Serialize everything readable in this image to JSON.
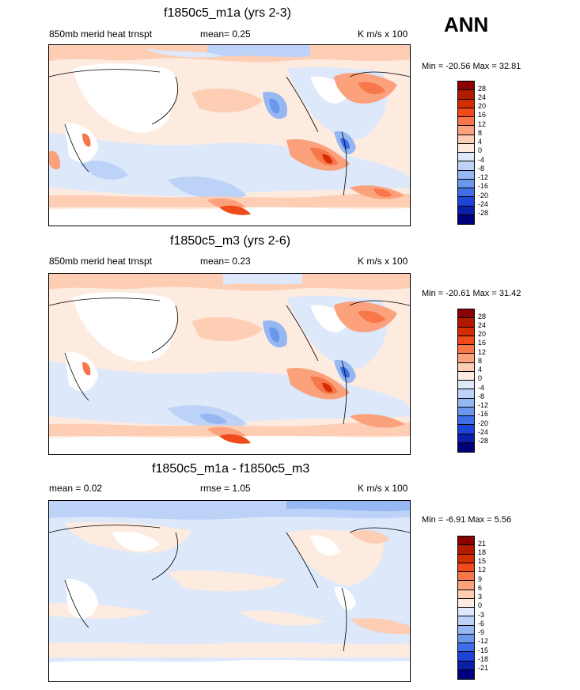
{
  "season": "ANN",
  "panels": [
    {
      "title": "f1850c5_m1a (yrs 2-3)",
      "left_label": "850mb merid heat trnspt",
      "center_label": "mean=   0.25",
      "right_label": "K m/s x 100",
      "minmax": "Min = -20.56 Max =  32.81",
      "levels": [
        "28",
        "24",
        "20",
        "16",
        "12",
        "8",
        "4",
        "0",
        "-4",
        "-8",
        "-12",
        "-16",
        "-20",
        "-24",
        "-28"
      ],
      "colors": [
        "#8b0000",
        "#b21a00",
        "#d42e00",
        "#ee4a1a",
        "#f7774a",
        "#fba27d",
        "#fdcdb4",
        "#fdebe0",
        "#dde8fb",
        "#bcd2f7",
        "#95b7f2",
        "#6b97ec",
        "#3f6ee6",
        "#1d44d6",
        "#0b1fa8",
        "#00007d"
      ]
    },
    {
      "title": "f1850c5_m3 (yrs 2-6)",
      "left_label": "850mb merid heat trnspt",
      "center_label": "mean=   0.23",
      "right_label": "K m/s x 100",
      "minmax": "Min = -20.61 Max =  31.42",
      "levels": [
        "28",
        "24",
        "20",
        "16",
        "12",
        "8",
        "4",
        "0",
        "-4",
        "-8",
        "-12",
        "-16",
        "-20",
        "-24",
        "-28"
      ],
      "colors": [
        "#8b0000",
        "#b21a00",
        "#d42e00",
        "#ee4a1a",
        "#f7774a",
        "#fba27d",
        "#fdcdb4",
        "#fdebe0",
        "#dde8fb",
        "#bcd2f7",
        "#95b7f2",
        "#6b97ec",
        "#3f6ee6",
        "#1d44d6",
        "#0b1fa8",
        "#00007d"
      ]
    },
    {
      "title": "f1850c5_m1a - f1850c5_m3",
      "left_label": "mean =   0.02",
      "center_label": "rmse =   1.05",
      "right_label": "K m/s x 100",
      "minmax": "Min =  -6.91 Max =   5.56",
      "levels": [
        "21",
        "18",
        "15",
        "12",
        "9",
        "6",
        "3",
        "0",
        "-3",
        "-6",
        "-9",
        "-12",
        "-15",
        "-18",
        "-21"
      ],
      "colors": [
        "#8b0000",
        "#b21a00",
        "#d42e00",
        "#ee4a1a",
        "#f7774a",
        "#fba27d",
        "#fdcdb4",
        "#fdebe0",
        "#dde8fb",
        "#bcd2f7",
        "#95b7f2",
        "#6b97ec",
        "#3f6ee6",
        "#1d44d6",
        "#0b1fa8",
        "#00007d"
      ]
    }
  ],
  "chart_data": [
    {
      "type": "heatmap",
      "title": "f1850c5_m1a (yrs 2-3)",
      "variable": "850mb merid heat trnspt",
      "units": "K m/s x 100",
      "mean": 0.25,
      "min": -20.56,
      "max": 32.81,
      "contour_levels": [
        -28,
        -24,
        -20,
        -16,
        -12,
        -8,
        -4,
        0,
        4,
        8,
        12,
        16,
        20,
        24,
        28
      ]
    },
    {
      "type": "heatmap",
      "title": "f1850c5_m3 (yrs 2-6)",
      "variable": "850mb merid heat trnspt",
      "units": "K m/s x 100",
      "mean": 0.23,
      "min": -20.61,
      "max": 31.42,
      "contour_levels": [
        -28,
        -24,
        -20,
        -16,
        -12,
        -8,
        -4,
        0,
        4,
        8,
        12,
        16,
        20,
        24,
        28
      ]
    },
    {
      "type": "heatmap",
      "title": "f1850c5_m1a - f1850c5_m3",
      "units": "K m/s x 100",
      "mean": 0.02,
      "rmse": 1.05,
      "min": -6.91,
      "max": 5.56,
      "contour_levels": [
        -21,
        -18,
        -15,
        -12,
        -9,
        -6,
        -3,
        0,
        3,
        6,
        9,
        12,
        15,
        18,
        21
      ]
    }
  ]
}
